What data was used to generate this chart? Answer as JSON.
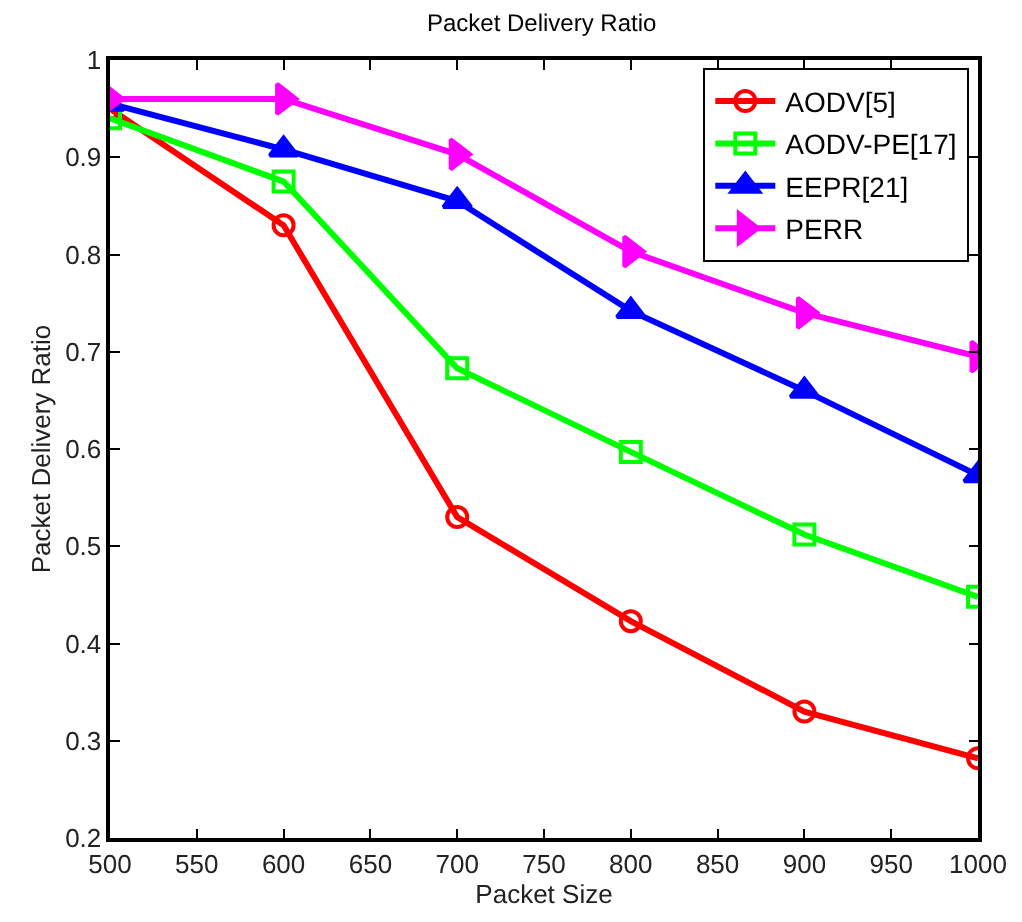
{
  "chart_data": {
    "type": "line",
    "title": "Packet Delivery Ratio",
    "xlabel": "Packet Size",
    "ylabel": "Packet Delivery Ratio",
    "x": [
      500,
      600,
      700,
      800,
      900,
      1000
    ],
    "series": [
      {
        "name": "AODV[5]",
        "color": "#ff0000",
        "marker": "circle",
        "values": [
          0.95,
          0.83,
          0.53,
          0.423,
          0.33,
          0.282
        ]
      },
      {
        "name": "AODV-PE[17]",
        "color": "#00ff00",
        "marker": "square",
        "values": [
          0.94,
          0.875,
          0.683,
          0.597,
          0.512,
          0.448
        ]
      },
      {
        "name": "EEPR[21]",
        "color": "#0000ff",
        "marker": "triangle",
        "values": [
          0.955,
          0.908,
          0.855,
          0.742,
          0.66,
          0.573
        ]
      },
      {
        "name": "PERR",
        "color": "#ff00ff",
        "marker": "triangle-right",
        "values": [
          0.96,
          0.96,
          0.903,
          0.803,
          0.74,
          0.695
        ]
      }
    ],
    "xlim": [
      500,
      1000
    ],
    "xticks": [
      500,
      550,
      600,
      650,
      700,
      750,
      800,
      850,
      900,
      950,
      1000
    ],
    "ylim": [
      0.2,
      1
    ],
    "yticks": [
      0.2,
      0.3,
      0.4,
      0.5,
      0.6,
      0.7,
      0.8,
      0.9,
      1
    ],
    "grid": false,
    "legend": "top right",
    "line_style": "solid"
  }
}
